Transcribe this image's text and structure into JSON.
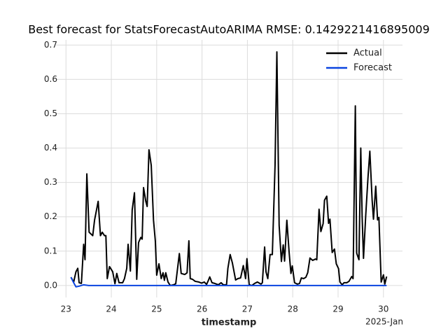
{
  "chart_data": {
    "type": "line",
    "title": "Best forecast for StatsForecastAutoARIMA RMSE: 0.1429221416895009",
    "x_label": "timestamp",
    "x_offset_label": "2025-Jan",
    "xlim": [
      22.78,
      30.42
    ],
    "xticks": [
      23,
      24,
      25,
      26,
      27,
      28,
      29,
      30
    ],
    "ylim": [
      -0.035,
      0.715
    ],
    "yticks": [
      {
        "value": 0,
        "label": "0.0"
      },
      0.1,
      0.2,
      0.3,
      0.4,
      0.5,
      0.6,
      0.7
    ],
    "grid": true,
    "legend": "upper right",
    "series": [
      {
        "name": "Actual",
        "color": "#000000",
        "x": [
          23.11,
          23.17,
          23.22,
          23.26,
          23.29,
          23.34,
          23.39,
          23.42,
          23.46,
          23.51,
          23.59,
          23.63,
          23.71,
          23.76,
          23.8,
          23.85,
          23.88,
          23.91,
          23.96,
          24.03,
          24.08,
          24.12,
          24.17,
          24.25,
          24.29,
          24.34,
          24.37,
          24.42,
          24.46,
          24.51,
          24.56,
          24.6,
          24.65,
          24.68,
          24.71,
          24.76,
          24.79,
          24.83,
          24.88,
          24.93,
          24.97,
          25.0,
          25.05,
          25.1,
          25.14,
          25.17,
          25.2,
          25.25,
          25.3,
          25.37,
          25.42,
          25.5,
          25.54,
          25.62,
          25.67,
          25.71,
          25.74,
          25.79,
          25.85,
          25.93,
          25.99,
          26.05,
          26.1,
          26.14,
          26.17,
          26.22,
          26.28,
          26.36,
          26.42,
          26.47,
          26.54,
          26.57,
          26.62,
          26.67,
          26.74,
          26.79,
          26.85,
          26.91,
          26.96,
          26.99,
          27.04,
          27.1,
          27.16,
          27.22,
          27.3,
          27.33,
          27.38,
          27.41,
          27.45,
          27.5,
          27.55,
          27.61,
          27.65,
          27.7,
          27.75,
          27.79,
          27.82,
          27.87,
          27.92,
          27.96,
          27.99,
          28.04,
          28.1,
          28.15,
          28.19,
          28.24,
          28.29,
          28.33,
          28.38,
          28.44,
          28.5,
          28.53,
          28.58,
          28.62,
          28.67,
          28.7,
          28.75,
          28.79,
          28.82,
          28.87,
          28.92,
          28.96,
          29.01,
          29.04,
          29.09,
          29.13,
          29.19,
          29.24,
          29.3,
          29.33,
          29.38,
          29.41,
          29.46,
          29.5,
          29.53,
          29.56,
          29.61,
          29.66,
          29.7,
          29.75,
          29.78,
          29.83,
          29.87,
          29.9,
          29.95,
          30.0,
          30.03,
          30.07
        ],
        "values": [
          0.024,
          0.01,
          0.04,
          0.05,
          0.008,
          0.006,
          0.12,
          0.075,
          0.325,
          0.155,
          0.145,
          0.19,
          0.245,
          0.145,
          0.155,
          0.145,
          0.145,
          0.02,
          0.055,
          0.04,
          0.005,
          0.035,
          0.008,
          0.008,
          0.02,
          0.05,
          0.12,
          0.042,
          0.22,
          0.27,
          0.018,
          0.125,
          0.14,
          0.135,
          0.285,
          0.245,
          0.23,
          0.395,
          0.35,
          0.19,
          0.13,
          0.03,
          0.063,
          0.02,
          0.037,
          0.015,
          0.037,
          0.01,
          0.0,
          0.002,
          0.005,
          0.093,
          0.035,
          0.032,
          0.037,
          0.13,
          0.02,
          0.018,
          0.012,
          0.01,
          0.007,
          0.01,
          0.003,
          0.015,
          0.025,
          0.008,
          0.006,
          0.002,
          0.008,
          0.002,
          0.002,
          0.05,
          0.09,
          0.065,
          0.016,
          0.02,
          0.022,
          0.058,
          0.02,
          0.078,
          0.002,
          0.0,
          0.006,
          0.01,
          0.004,
          0.008,
          0.112,
          0.04,
          0.02,
          0.09,
          0.09,
          0.35,
          0.68,
          0.175,
          0.07,
          0.118,
          0.071,
          0.19,
          0.097,
          0.035,
          0.057,
          0.008,
          0.004,
          0.006,
          0.022,
          0.02,
          0.024,
          0.037,
          0.08,
          0.073,
          0.077,
          0.075,
          0.222,
          0.157,
          0.18,
          0.248,
          0.26,
          0.181,
          0.193,
          0.096,
          0.106,
          0.063,
          0.049,
          0.01,
          0.002,
          0.008,
          0.008,
          0.012,
          0.026,
          0.02,
          0.523,
          0.094,
          0.075,
          0.4,
          0.2,
          0.079,
          0.206,
          0.316,
          0.391,
          0.25,
          0.193,
          0.289,
          0.191,
          0.198,
          0.01,
          0.031,
          0.004,
          0.026
        ]
      },
      {
        "name": "Forecast",
        "color": "#0a44e0",
        "x": [
          23.11,
          23.17,
          23.22,
          23.29,
          23.39,
          23.5,
          30.07
        ],
        "values": [
          0.024,
          0.008,
          -0.004,
          -0.002,
          0.002,
          0,
          0
        ]
      }
    ]
  }
}
